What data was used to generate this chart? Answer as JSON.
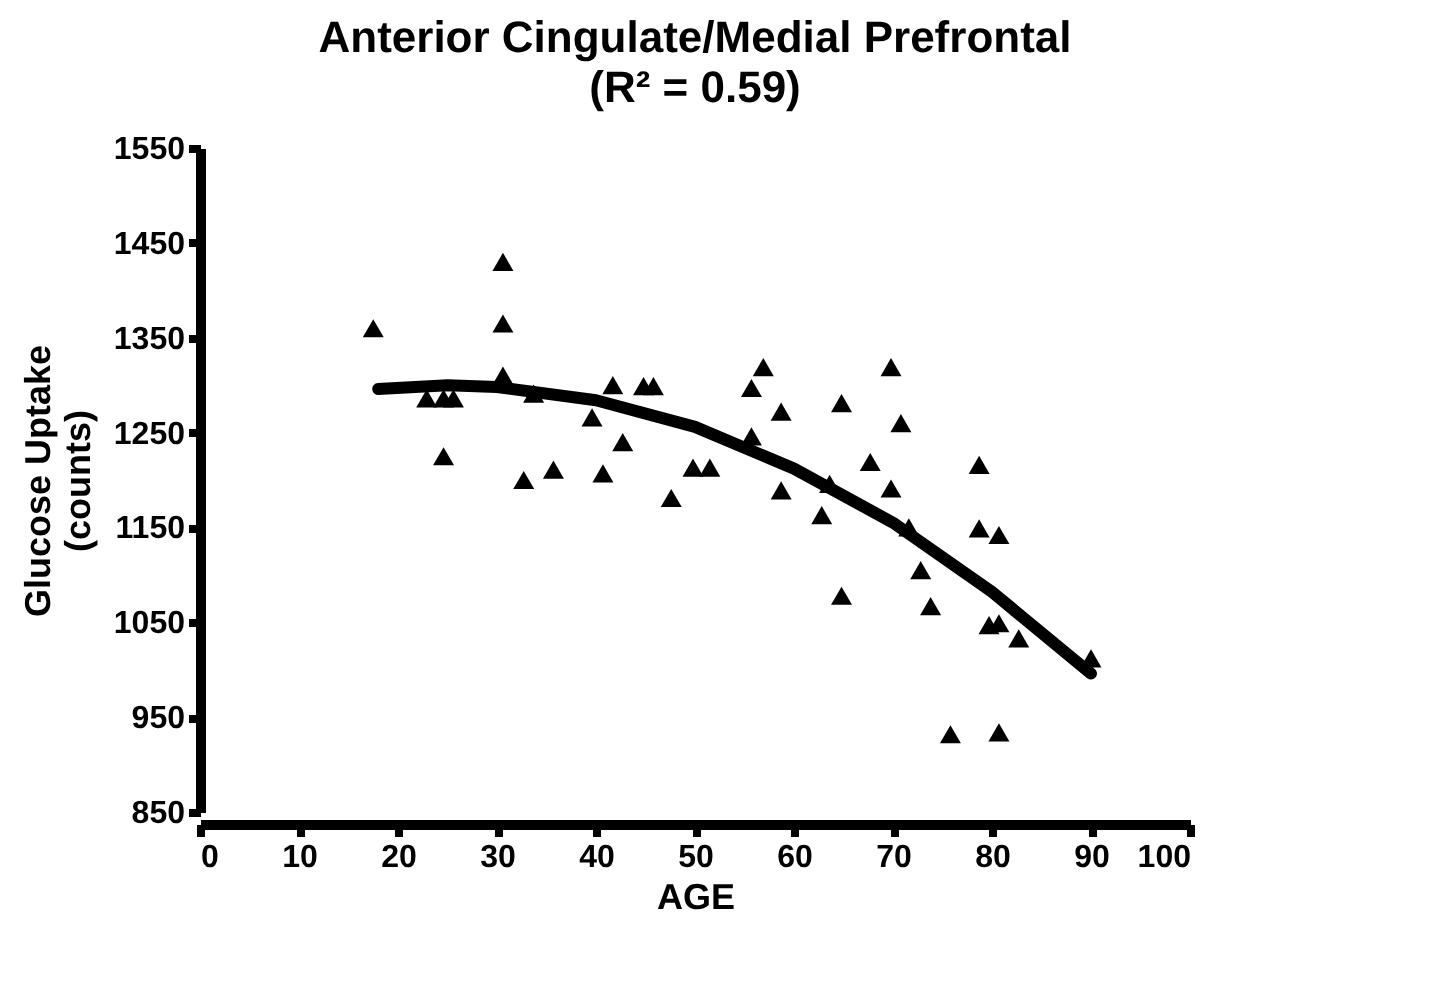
{
  "chart_data": {
    "type": "scatter",
    "title": "Anterior Cingulate/Medial Prefrontal",
    "subtitle": "(R² = 0.59)",
    "xlabel": "AGE",
    "ylabel": "Glucose Uptake (counts)",
    "xlim": [
      0,
      100
    ],
    "xticks": [
      0,
      10,
      20,
      30,
      40,
      50,
      60,
      70,
      80,
      90,
      100
    ],
    "ylim": [
      850,
      1550
    ],
    "yticks": [
      850,
      950,
      1050,
      1150,
      1250,
      1350,
      1450,
      1550
    ],
    "grid": false,
    "marker": "triangle",
    "series": [
      {
        "color": "#000000",
        "x": [
          17.5,
          30.6,
          30.6,
          30.6,
          22.9,
          24.6,
          25.6,
          24.6,
          33.7,
          32.7,
          35.7,
          39.6,
          40.7,
          41.7,
          42.7,
          44.8,
          45.8,
          47.6,
          49.8,
          51.5,
          56.9,
          55.7,
          55.7,
          58.7,
          58.7,
          64.8,
          63.6,
          62.8,
          64.8,
          67.7,
          69.8,
          70.8,
          69.8,
          71.6,
          72.8,
          73.8,
          75.8,
          78.7,
          78.7,
          80.7,
          79.7,
          80.7,
          82.7,
          80.7,
          90.0
        ],
        "values": [
          1360,
          1430,
          1365,
          1310,
          1286,
          1286,
          1286,
          1225,
          1291,
          1200,
          1211,
          1266,
          1207,
          1300,
          1240,
          1299,
          1299,
          1181,
          1213,
          1213,
          1319,
          1297,
          1246,
          1272,
          1189,
          1281,
          1196,
          1163,
          1078,
          1219,
          1319,
          1260,
          1191,
          1150,
          1105,
          1067,
          932,
          1216,
          1149,
          1142,
          1047,
          1049,
          1033,
          934,
          1012
        ]
      },
      {
        "type": "line",
        "color": "#000000",
        "marker": "none",
        "x": [
          18,
          25,
          30,
          40,
          50,
          60,
          70,
          80,
          90
        ],
        "values": [
          1296,
          1300,
          1298,
          1284,
          1256,
          1212,
          1155,
          1082,
          996
        ]
      }
    ]
  }
}
